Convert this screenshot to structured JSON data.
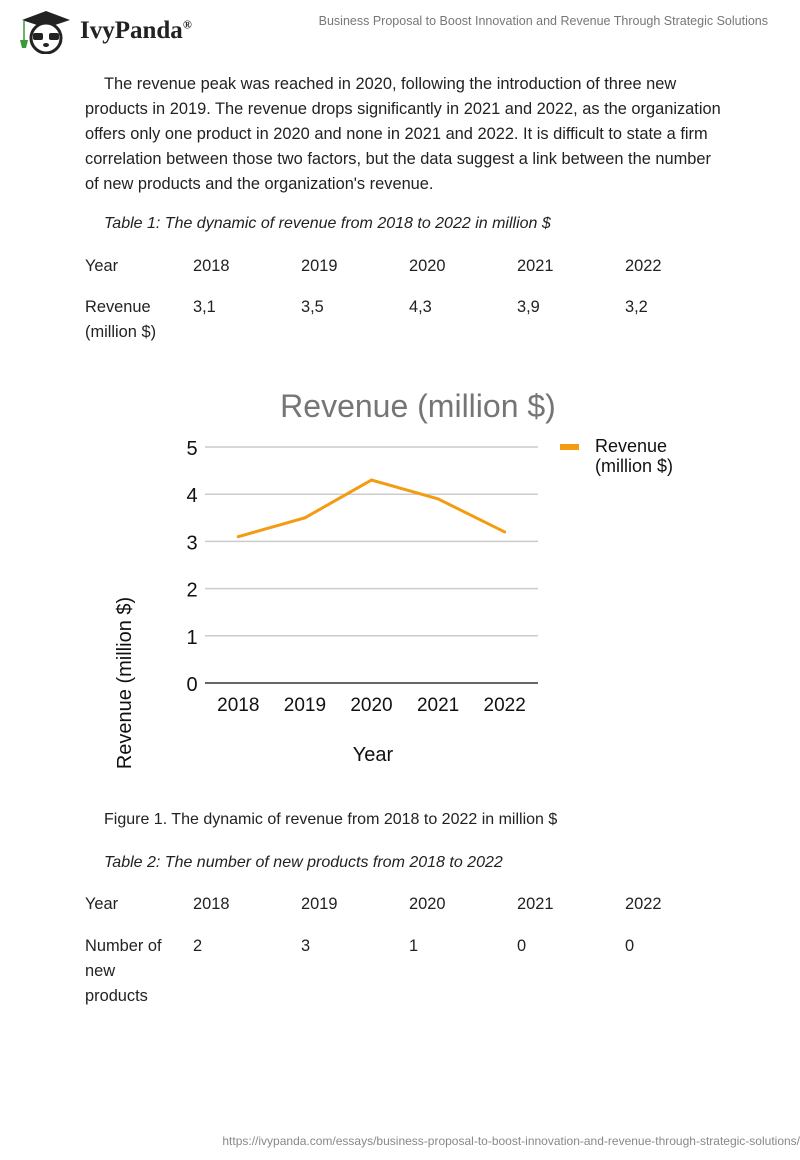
{
  "header": {
    "brand": "IvyPanda",
    "registered": "®",
    "title": "Business Proposal to Boost Innovation and Revenue Through Strategic Solutions"
  },
  "body": {
    "paragraph": "The revenue peak was reached in 2020, following the introduction of three new products in 2019. The revenue drops significantly in 2021 and 2022, as the organization offers only one product in 2020 and none in 2021 and 2022. It is difficult to state a firm correlation between those two factors, but the data suggest a link between the number of new products and the organization's revenue."
  },
  "table1": {
    "caption": "Table 1: The dynamic of revenue from 2018 to 2022 in million $",
    "header": [
      "Year",
      "2018",
      "2019",
      "2020",
      "2021",
      "2022"
    ],
    "row": [
      "Revenue (million $)",
      "3,1",
      "3,5",
      "4,3",
      "3,9",
      "3,2"
    ]
  },
  "figure_caption": "Figure 1. The dynamic of revenue from 2018 to 2022 in million $",
  "table2": {
    "caption": "Table 2: The number of new products from 2018 to 2022",
    "header": [
      "Year",
      "2018",
      "2019",
      "2020",
      "2021",
      "2022"
    ],
    "row": [
      "Number of new products",
      "2",
      "3",
      "1",
      "0",
      "0"
    ]
  },
  "footer": {
    "url": "https://ivypanda.com/essays/business-proposal-to-boost-innovation-and-revenue-through-strategic-solutions/"
  },
  "chart_data": {
    "type": "line",
    "title": "Revenue (million $)",
    "xlabel": "Year",
    "ylabel": "Revenue (million $)",
    "categories": [
      "2018",
      "2019",
      "2020",
      "2021",
      "2022"
    ],
    "series": [
      {
        "name": "Revenue (million $)",
        "values": [
          3.1,
          3.5,
          4.3,
          3.9,
          3.2
        ],
        "color": "#f39c12"
      }
    ],
    "ylim": [
      0,
      5
    ],
    "yticks": [
      "0",
      "1",
      "2",
      "3",
      "4",
      "5"
    ],
    "grid": true,
    "legend": "right"
  }
}
